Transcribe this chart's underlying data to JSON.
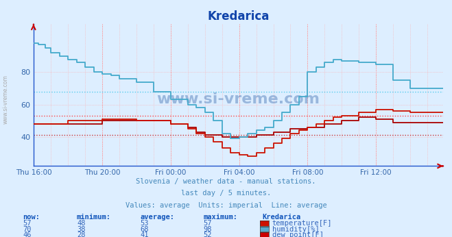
{
  "title": "Kredarica",
  "background_color": "#ddeeff",
  "subtitle_lines": [
    "Slovenia / weather data - manual stations.",
    "last day / 5 minutes.",
    "Values: average  Units: imperial  Line: average"
  ],
  "xlabel_ticks": [
    "Thu 16:00",
    "Thu 20:00",
    "Fri 00:00",
    "Fri 04:00",
    "Fri 08:00",
    "Fri 12:00"
  ],
  "tick_x_positions": [
    0,
    48,
    96,
    144,
    192,
    240
  ],
  "ylim": [
    22,
    110
  ],
  "xlim": [
    0,
    287
  ],
  "avg_temperature": 53,
  "avg_humidity": 68,
  "avg_dew_point": 41,
  "temperature_color": "#cc1100",
  "humidity_color": "#44aacc",
  "dew_point_color": "#aa0000",
  "avg_temp_color": "#ff4444",
  "avg_hum_color": "#55ccee",
  "avg_dew_color": "#cc3333",
  "watermark": "www.si-vreme.com",
  "title_color": "#1144aa",
  "tick_label_color": "#3366aa",
  "subtitle_color": "#4488bb",
  "legend_header_color": "#1155bb",
  "legend_value_color": "#3366bb",
  "legend_items": [
    {
      "label": "temperature[F]",
      "box_color": "#cc1100",
      "now": 57,
      "min": 48,
      "avg": 53,
      "max": 57
    },
    {
      "label": "humidity[%]",
      "box_color": "#55aacc",
      "now": 70,
      "min": 38,
      "avg": 68,
      "max": 98
    },
    {
      "label": "dew point[F]",
      "box_color": "#cc0000",
      "now": 46,
      "min": 28,
      "avg": 41,
      "max": 52
    }
  ]
}
